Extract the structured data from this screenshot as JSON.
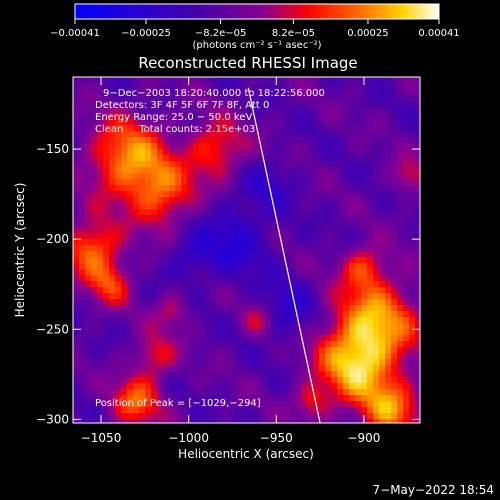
{
  "chart_data": {
    "type": "heatmap",
    "title": "Reconstructed RHESSI Image",
    "xlabel": "Heliocentric X (arcsec)",
    "ylabel": "Heliocentric Y (arcsec)",
    "xlim": [
      -1066,
      -868
    ],
    "ylim": [
      -302,
      -110
    ],
    "x_ticks": [
      -1050,
      -1000,
      -950,
      -900
    ],
    "x_tick_labels": [
      "−1050",
      "−1000",
      "−950",
      "−900"
    ],
    "y_ticks": [
      -300,
      -250,
      -200,
      -150
    ],
    "y_tick_labels": [
      "−300",
      "−250",
      "−200",
      "−150"
    ],
    "colorbar": {
      "ticks": [
        -0.00041,
        -0.00025,
        -8.2e-05,
        8.2e-05,
        0.00025,
        0.00041
      ],
      "tick_labels": [
        "−0.00041",
        "−0.00025",
        "−8.2e−05",
        "8.2e−05",
        "0.00025",
        "0.00041"
      ],
      "range": [
        -0.00041,
        0.00041
      ],
      "unit_label": "(photons cm⁻² s⁻¹ asec⁻²)"
    },
    "annotations": [
      "9−Dec−2003 18:20:40.000 to 18:22:56.000",
      "Detectors: 3F 4F 5F 6F 7F 8F, Att 0",
      "Energy Range: 25.0 − 50.0 keV",
      "Clean     Total counts: 2.15e+03"
    ],
    "peak_label": "Position of Peak = [−1029,−294]",
    "peak": [
      -1029,
      -294
    ],
    "limb_line": {
      "x1": -966,
      "y1": -116,
      "x2": -925,
      "y2": -302,
      "color": "#ffffff"
    },
    "grid": false,
    "legend": "none"
  },
  "footer": {
    "timestamp": "7−May−2022 18:54"
  }
}
